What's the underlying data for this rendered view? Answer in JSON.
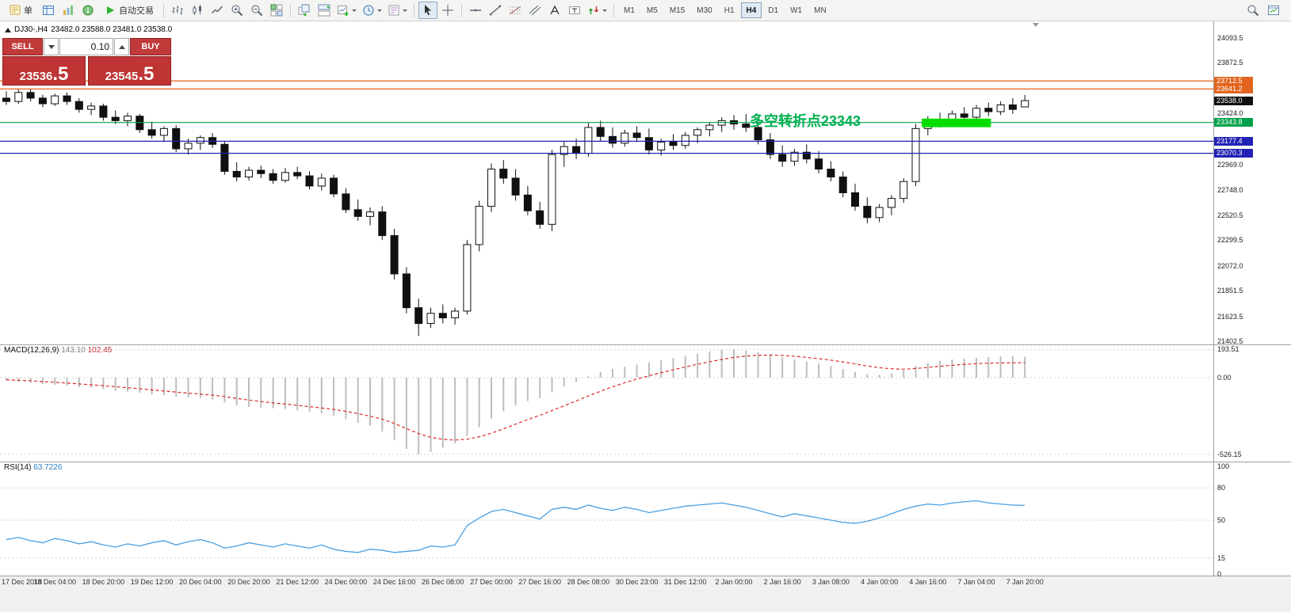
{
  "toolbar": {
    "new_order_label": "单",
    "autotrading_label": "自动交易",
    "timeframes": [
      "M1",
      "M5",
      "M15",
      "M30",
      "H1",
      "H4",
      "D1",
      "W1",
      "MN"
    ],
    "active_timeframe": "H4"
  },
  "chart": {
    "symbol_period": "DJ30-,H4",
    "ohlc": "23482.0 23588.0 23481.0 23538.0",
    "annotation": "多空转折点23343",
    "annotation_color": "#00B050",
    "highlight": {
      "from_bar": 75.5,
      "to_bar": 81.2,
      "price_top": 23378,
      "price_bottom": 23302,
      "color": "#00DC00"
    }
  },
  "trade_panel": {
    "sell_label": "SELL",
    "buy_label": "BUY",
    "lot_value": "0.10",
    "sell_price": "23536",
    "sell_price_big": ".5",
    "buy_price": "23545",
    "buy_price_big": ".5"
  },
  "price_axis": {
    "ticks": [
      "24093.5",
      "23872.5",
      "23424.0",
      "22969.0",
      "22748.0",
      "22520.5",
      "22299.5",
      "22072.0",
      "21851.5",
      "21623.5",
      "21402.5"
    ],
    "tags": [
      {
        "label": "23712.5",
        "color": "#E2641E",
        "line": true
      },
      {
        "label": "23641.2",
        "color": "#E2641E",
        "line": true
      },
      {
        "label": "23538.0",
        "color": "#101010",
        "line": false
      },
      {
        "label": "23343.8",
        "color": "#00A14B",
        "line": true
      },
      {
        "label": "23177.4",
        "color": "#2121B4",
        "line": true
      },
      {
        "label": "23070.3",
        "color": "#2121B4",
        "line": true
      }
    ]
  },
  "macd": {
    "name": "MACD(12,26,9)",
    "main_value": "143.10",
    "signal_value": "102.45",
    "scale_labels": [
      "193.51",
      "0.00",
      "-526.15"
    ],
    "main": [
      -20,
      -30,
      -35,
      -45,
      -50,
      -55,
      -65,
      -70,
      -80,
      -90,
      -95,
      -105,
      -115,
      -120,
      -130,
      -135,
      -140,
      -150,
      -170,
      -190,
      -200,
      -205,
      -210,
      -215,
      -225,
      -235,
      -245,
      -260,
      -285,
      -310,
      -330,
      -370,
      -430,
      -490,
      -526,
      -510,
      -480,
      -450,
      -400,
      -340,
      -280,
      -230,
      -190,
      -160,
      -140,
      -100,
      -60,
      -30,
      10,
      40,
      60,
      75,
      90,
      105,
      120,
      135,
      150,
      165,
      180,
      190,
      193.5,
      185,
      175,
      160,
      140,
      125,
      110,
      95,
      80,
      60,
      40,
      25,
      20,
      30,
      50,
      80,
      100,
      115,
      125,
      130,
      135,
      140,
      145,
      148,
      143.1
    ],
    "signal": [
      -15,
      -18,
      -22,
      -27,
      -32,
      -37,
      -43,
      -49,
      -55,
      -62,
      -69,
      -76,
      -84,
      -91,
      -99,
      -106,
      -113,
      -120,
      -130,
      -142,
      -154,
      -164,
      -173,
      -181,
      -190,
      -199,
      -208,
      -218,
      -231,
      -247,
      -264,
      -285,
      -314,
      -349,
      -384,
      -409,
      -423,
      -428,
      -422,
      -406,
      -381,
      -351,
      -319,
      -287,
      -258,
      -226,
      -193,
      -160,
      -126,
      -93,
      -62,
      -35,
      -10,
      13,
      34,
      54,
      73,
      92,
      109,
      125,
      139,
      148,
      153,
      155,
      152,
      147,
      139,
      130,
      120,
      108,
      94,
      80,
      68,
      61,
      58,
      63,
      70,
      78,
      85,
      91,
      96,
      99,
      101,
      102,
      102.45
    ]
  },
  "rsi": {
    "name": "RSI(14)",
    "value": "63.7226",
    "levels": [
      "100",
      "80",
      "50",
      "15",
      "0"
    ],
    "values": [
      32,
      34,
      31,
      29,
      33,
      31,
      28,
      30,
      27,
      25,
      28,
      26,
      29,
      31,
      27,
      30,
      32,
      29,
      24,
      26,
      29,
      27,
      25,
      28,
      26,
      24,
      27,
      23,
      21,
      20,
      23,
      22,
      20,
      21,
      22,
      26,
      25,
      27,
      45,
      52,
      58,
      60,
      57,
      54,
      51,
      60,
      62,
      60,
      64,
      61,
      59,
      62,
      60,
      57,
      59,
      61,
      63,
      64,
      65,
      66,
      64,
      62,
      59,
      56,
      53,
      56,
      54,
      52,
      50,
      48,
      47,
      49,
      52,
      56,
      60,
      63,
      65,
      64,
      66,
      67,
      68,
      66,
      65,
      64,
      63.72
    ]
  },
  "time_axis": {
    "labels": [
      "17 Dec 2018",
      "18 Dec 04:00",
      "18 Dec 20:00",
      "19 Dec 12:00",
      "20 Dec 04:00",
      "20 Dec 20:00",
      "21 Dec 12:00",
      "24 Dec 00:00",
      "24 Dec 16:00",
      "26 Dec 08:00",
      "27 Dec 00:00",
      "27 Dec 16:00",
      "28 Dec 08:00",
      "30 Dec 23:00",
      "31 Dec 12:00",
      "2 Jan 00:00",
      "2 Jan 16:00",
      "3 Jan 08:00",
      "4 Jan 00:00",
      "4 Jan 16:00",
      "7 Jan 04:00",
      "7 Jan 20:00"
    ]
  },
  "chart_data": {
    "type": "candlestick",
    "symbol": "DJ30-",
    "timeframe": "H4",
    "price_range": [
      21402.5,
      24093.5
    ],
    "candles": [
      [
        23560,
        23620,
        23500,
        23530
      ],
      [
        23530,
        23645,
        23510,
        23610
      ],
      [
        23610,
        23640,
        23530,
        23560
      ],
      [
        23560,
        23590,
        23480,
        23510
      ],
      [
        23510,
        23600,
        23490,
        23580
      ],
      [
        23580,
        23610,
        23500,
        23530
      ],
      [
        23530,
        23560,
        23430,
        23460
      ],
      [
        23460,
        23520,
        23410,
        23490
      ],
      [
        23490,
        23510,
        23360,
        23390
      ],
      [
        23390,
        23450,
        23330,
        23360
      ],
      [
        23360,
        23430,
        23310,
        23400
      ],
      [
        23400,
        23420,
        23250,
        23280
      ],
      [
        23280,
        23350,
        23200,
        23230
      ],
      [
        23230,
        23310,
        23170,
        23290
      ],
      [
        23290,
        23320,
        23080,
        23110
      ],
      [
        23110,
        23200,
        23060,
        23160
      ],
      [
        23160,
        23230,
        23100,
        23210
      ],
      [
        23210,
        23250,
        23120,
        23150
      ],
      [
        23150,
        23180,
        22880,
        22910
      ],
      [
        22910,
        22990,
        22820,
        22860
      ],
      [
        22860,
        22950,
        22830,
        22920
      ],
      [
        22920,
        22960,
        22850,
        22890
      ],
      [
        22890,
        22930,
        22800,
        22830
      ],
      [
        22830,
        22940,
        22810,
        22900
      ],
      [
        22900,
        22950,
        22840,
        22870
      ],
      [
        22870,
        22910,
        22750,
        22780
      ],
      [
        22780,
        22890,
        22740,
        22850
      ],
      [
        22850,
        22880,
        22680,
        22710
      ],
      [
        22710,
        22760,
        22540,
        22570
      ],
      [
        22570,
        22660,
        22470,
        22510
      ],
      [
        22510,
        22590,
        22430,
        22550
      ],
      [
        22550,
        22600,
        22300,
        22340
      ],
      [
        22340,
        22400,
        21950,
        22000
      ],
      [
        22000,
        22060,
        21650,
        21700
      ],
      [
        21700,
        21780,
        21450,
        21560
      ],
      [
        21560,
        21700,
        21520,
        21650
      ],
      [
        21650,
        21730,
        21560,
        21610
      ],
      [
        21610,
        21700,
        21550,
        21670
      ],
      [
        21670,
        22300,
        21640,
        22260
      ],
      [
        22260,
        22650,
        22200,
        22600
      ],
      [
        22600,
        22980,
        22550,
        22930
      ],
      [
        22930,
        23010,
        22800,
        22850
      ],
      [
        22850,
        22930,
        22650,
        22700
      ],
      [
        22700,
        22780,
        22520,
        22560
      ],
      [
        22560,
        22640,
        22400,
        22440
      ],
      [
        22440,
        23100,
        22380,
        23060
      ],
      [
        23060,
        23180,
        22950,
        23130
      ],
      [
        23130,
        23200,
        23020,
        23070
      ],
      [
        23070,
        23340,
        23040,
        23300
      ],
      [
        23300,
        23360,
        23180,
        23220
      ],
      [
        23220,
        23300,
        23120,
        23160
      ],
      [
        23160,
        23280,
        23130,
        23250
      ],
      [
        23250,
        23310,
        23170,
        23210
      ],
      [
        23210,
        23290,
        23060,
        23100
      ],
      [
        23100,
        23200,
        23050,
        23170
      ],
      [
        23170,
        23240,
        23100,
        23140
      ],
      [
        23140,
        23260,
        23110,
        23230
      ],
      [
        23230,
        23300,
        23160,
        23280
      ],
      [
        23280,
        23350,
        23220,
        23320
      ],
      [
        23320,
        23390,
        23260,
        23360
      ],
      [
        23360,
        23410,
        23280,
        23330
      ],
      [
        23330,
        23420,
        23260,
        23300
      ],
      [
        23300,
        23350,
        23150,
        23190
      ],
      [
        23190,
        23250,
        23020,
        23060
      ],
      [
        23060,
        23140,
        22950,
        23000
      ],
      [
        23000,
        23110,
        22960,
        23080
      ],
      [
        23080,
        23150,
        22980,
        23020
      ],
      [
        23020,
        23090,
        22890,
        22930
      ],
      [
        22930,
        23000,
        22820,
        22860
      ],
      [
        22860,
        22910,
        22680,
        22720
      ],
      [
        22720,
        22800,
        22560,
        22600
      ],
      [
        22600,
        22680,
        22450,
        22500
      ],
      [
        22500,
        22620,
        22460,
        22590
      ],
      [
        22590,
        22700,
        22520,
        22670
      ],
      [
        22670,
        22850,
        22630,
        22820
      ],
      [
        22820,
        23330,
        22780,
        23290
      ],
      [
        23290,
        23400,
        23230,
        23370
      ],
      [
        23370,
        23430,
        23300,
        23340
      ],
      [
        23340,
        23450,
        23310,
        23420
      ],
      [
        23420,
        23480,
        23350,
        23390
      ],
      [
        23390,
        23500,
        23360,
        23470
      ],
      [
        23470,
        23520,
        23400,
        23440
      ],
      [
        23440,
        23530,
        23410,
        23500
      ],
      [
        23500,
        23560,
        23420,
        23460
      ],
      [
        23482,
        23588,
        23481,
        23538
      ]
    ]
  }
}
